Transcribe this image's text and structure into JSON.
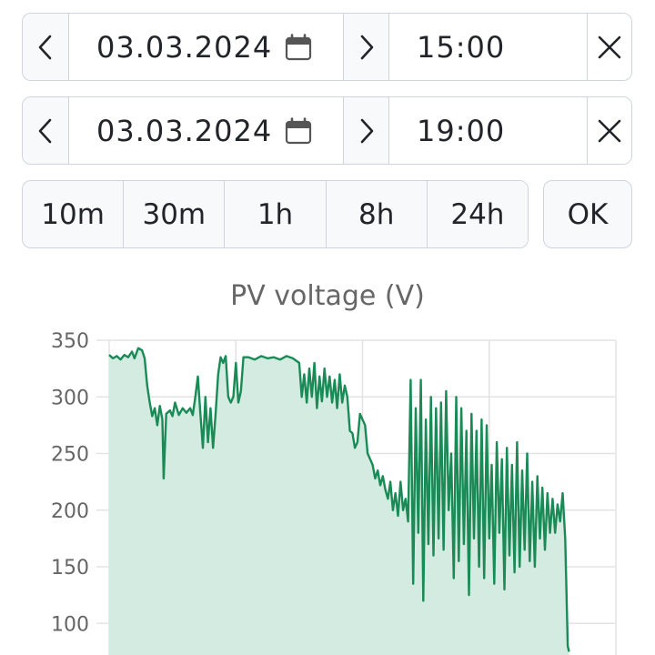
{
  "start": {
    "date": "03.03.2024",
    "time": "15:00"
  },
  "end": {
    "date": "03.03.2024",
    "time": "19:00"
  },
  "ranges": [
    "10m",
    "30m",
    "1h",
    "8h",
    "24h"
  ],
  "ok_label": "OK",
  "icons": {
    "prev": "chevron-left-icon",
    "next": "chevron-right-icon",
    "calendar": "calendar-icon",
    "clear": "close-icon"
  },
  "colors": {
    "line": "#1a8a56",
    "fill": "#d3ebe0",
    "grid": "#e3e3e3",
    "text": "#666666"
  },
  "chart_data": {
    "type": "area",
    "title": "PV voltage (V)",
    "yticks": [
      350,
      300,
      250,
      200,
      150,
      100
    ],
    "ylim": [
      75,
      350
    ],
    "x_unit": "hours after 15:00",
    "xlim": [
      0,
      4
    ],
    "grid": true,
    "series": [
      {
        "values": [
          [
            0.0,
            337
          ],
          [
            0.03,
            334
          ],
          [
            0.06,
            336
          ],
          [
            0.09,
            333
          ],
          [
            0.12,
            337
          ],
          [
            0.15,
            335
          ],
          [
            0.18,
            340
          ],
          [
            0.2,
            334
          ],
          [
            0.23,
            343
          ],
          [
            0.26,
            341
          ],
          [
            0.28,
            334
          ],
          [
            0.3,
            310
          ],
          [
            0.32,
            295
          ],
          [
            0.34,
            283
          ],
          [
            0.36,
            290
          ],
          [
            0.38,
            275
          ],
          [
            0.4,
            292
          ],
          [
            0.42,
            280
          ],
          [
            0.43,
            228
          ],
          [
            0.45,
            285
          ],
          [
            0.48,
            288
          ],
          [
            0.5,
            283
          ],
          [
            0.52,
            295
          ],
          [
            0.55,
            284
          ],
          [
            0.58,
            290
          ],
          [
            0.61,
            286
          ],
          [
            0.64,
            290
          ],
          [
            0.66,
            284
          ],
          [
            0.68,
            300
          ],
          [
            0.7,
            318
          ],
          [
            0.72,
            285
          ],
          [
            0.74,
            255
          ],
          [
            0.76,
            300
          ],
          [
            0.78,
            260
          ],
          [
            0.8,
            290
          ],
          [
            0.82,
            255
          ],
          [
            0.84,
            285
          ],
          [
            0.86,
            320
          ],
          [
            0.88,
            335
          ],
          [
            0.9,
            330
          ],
          [
            0.92,
            336
          ],
          [
            0.94,
            300
          ],
          [
            0.96,
            295
          ],
          [
            0.98,
            300
          ],
          [
            1.0,
            330
          ],
          [
            1.02,
            295
          ],
          [
            1.04,
            305
          ],
          [
            1.06,
            335
          ],
          [
            1.1,
            335
          ],
          [
            1.15,
            333
          ],
          [
            1.2,
            336
          ],
          [
            1.25,
            334
          ],
          [
            1.3,
            335
          ],
          [
            1.35,
            333
          ],
          [
            1.4,
            336
          ],
          [
            1.45,
            334
          ],
          [
            1.5,
            330
          ],
          [
            1.52,
            300
          ],
          [
            1.54,
            320
          ],
          [
            1.56,
            295
          ],
          [
            1.58,
            325
          ],
          [
            1.6,
            300
          ],
          [
            1.62,
            330
          ],
          [
            1.64,
            290
          ],
          [
            1.66,
            318
          ],
          [
            1.68,
            296
          ],
          [
            1.7,
            325
          ],
          [
            1.72,
            300
          ],
          [
            1.74,
            318
          ],
          [
            1.76,
            295
          ],
          [
            1.78,
            315
          ],
          [
            1.8,
            290
          ],
          [
            1.82,
            320
          ],
          [
            1.84,
            295
          ],
          [
            1.86,
            310
          ],
          [
            1.88,
            300
          ],
          [
            1.9,
            270
          ],
          [
            1.92,
            268
          ],
          [
            1.94,
            255
          ],
          [
            1.96,
            260
          ],
          [
            1.98,
            285
          ],
          [
            2.0,
            280
          ],
          [
            2.02,
            275
          ],
          [
            2.04,
            250
          ],
          [
            2.06,
            245
          ],
          [
            2.08,
            240
          ],
          [
            2.1,
            228
          ],
          [
            2.12,
            235
          ],
          [
            2.14,
            222
          ],
          [
            2.16,
            230
          ],
          [
            2.18,
            218
          ],
          [
            2.2,
            210
          ],
          [
            2.22,
            225
          ],
          [
            2.24,
            200
          ],
          [
            2.26,
            215
          ],
          [
            2.28,
            195
          ],
          [
            2.3,
            225
          ],
          [
            2.32,
            200
          ],
          [
            2.34,
            210
          ],
          [
            2.36,
            190
          ],
          [
            2.38,
            315
          ],
          [
            2.4,
            135
          ],
          [
            2.42,
            290
          ],
          [
            2.44,
            180
          ],
          [
            2.46,
            315
          ],
          [
            2.48,
            120
          ],
          [
            2.5,
            280
          ],
          [
            2.52,
            170
          ],
          [
            2.54,
            300
          ],
          [
            2.56,
            160
          ],
          [
            2.58,
            290
          ],
          [
            2.6,
            175
          ],
          [
            2.62,
            295
          ],
          [
            2.64,
            165
          ],
          [
            2.66,
            305
          ],
          [
            2.68,
            200
          ],
          [
            2.7,
            250
          ],
          [
            2.72,
            140
          ],
          [
            2.74,
            300
          ],
          [
            2.76,
            155
          ],
          [
            2.78,
            290
          ],
          [
            2.8,
            170
          ],
          [
            2.82,
            270
          ],
          [
            2.84,
            125
          ],
          [
            2.86,
            285
          ],
          [
            2.88,
            175
          ],
          [
            2.9,
            270
          ],
          [
            2.92,
            150
          ],
          [
            2.94,
            280
          ],
          [
            2.96,
            140
          ],
          [
            2.98,
            275
          ],
          [
            3.0,
            175
          ],
          [
            3.02,
            240
          ],
          [
            3.04,
            135
          ],
          [
            3.06,
            260
          ],
          [
            3.08,
            180
          ],
          [
            3.1,
            245
          ],
          [
            3.12,
            130
          ],
          [
            3.14,
            255
          ],
          [
            3.16,
            160
          ],
          [
            3.18,
            240
          ],
          [
            3.2,
            145
          ],
          [
            3.22,
            260
          ],
          [
            3.24,
            150
          ],
          [
            3.26,
            235
          ],
          [
            3.28,
            165
          ],
          [
            3.3,
            250
          ],
          [
            3.32,
            155
          ],
          [
            3.34,
            225
          ],
          [
            3.36,
            150
          ],
          [
            3.38,
            230
          ],
          [
            3.4,
            175
          ],
          [
            3.42,
            220
          ],
          [
            3.44,
            165
          ],
          [
            3.46,
            215
          ],
          [
            3.48,
            180
          ],
          [
            3.5,
            210
          ],
          [
            3.52,
            180
          ],
          [
            3.54,
            205
          ],
          [
            3.56,
            190
          ],
          [
            3.58,
            215
          ],
          [
            3.6,
            175
          ],
          [
            3.62,
            80
          ],
          [
            3.63,
            75
          ]
        ]
      }
    ]
  }
}
